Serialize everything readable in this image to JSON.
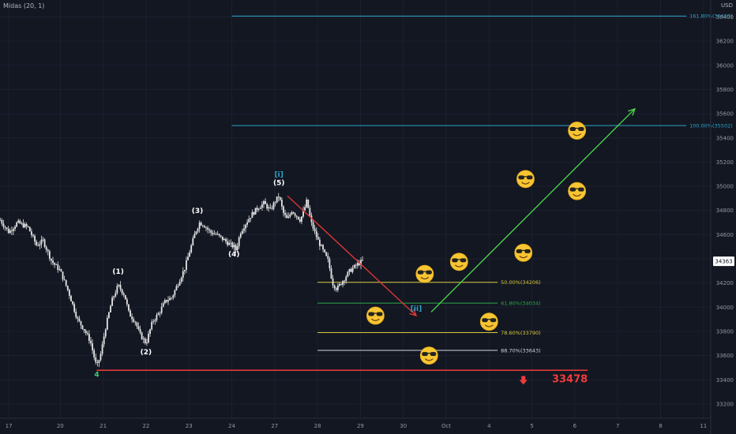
{
  "header": {
    "indicator": "Midas (20, 1)",
    "currency": "USD"
  },
  "colors": {
    "background": "#131722",
    "candle": "#e6e6e6",
    "fib_cyan": "#2ba3c9",
    "fib_yellow": "#d8c93a",
    "fib_green": "#2ea84a",
    "fib_white": "#d1d4dc",
    "support_red": "#ef3b3b",
    "arrow_red": "#e53935",
    "arrow_green": "#4cd94c",
    "wave_bracket": "#2ba3c9",
    "wave_four": "#3cd070",
    "price_tag_bg": "#ffffff"
  },
  "chart_data": {
    "type": "candlestick",
    "x_ticks": [
      "17",
      "20",
      "21",
      "22",
      "23",
      "24",
      "27",
      "28",
      "29",
      "30",
      "Oct",
      "4",
      "5",
      "6",
      "7",
      "8",
      "11"
    ],
    "x_tick_index": [
      -0.2,
      1,
      2,
      3,
      4,
      5,
      6,
      7,
      8,
      9,
      10,
      11,
      12,
      13,
      14,
      15,
      16
    ],
    "y_ticks": [
      33200,
      33400,
      33600,
      33800,
      34000,
      34200,
      34400,
      34600,
      34800,
      35000,
      35200,
      35400,
      35600,
      35800,
      36000,
      36200,
      36400
    ],
    "ylim": [
      33100,
      36490
    ],
    "last_price": "34363",
    "price_path": [
      [
        -0.4,
        34720
      ],
      [
        -0.2,
        34620
      ],
      [
        0,
        34700
      ],
      [
        0.25,
        34660
      ],
      [
        0.45,
        34510
      ],
      [
        0.6,
        34550
      ],
      [
        0.8,
        34380
      ],
      [
        1.0,
        34300
      ],
      [
        1.2,
        34120
      ],
      [
        1.4,
        33900
      ],
      [
        1.55,
        33820
      ],
      [
        1.7,
        33720
      ],
      [
        1.85,
        33500
      ],
      [
        1.95,
        33620
      ],
      [
        2.05,
        33820
      ],
      [
        2.2,
        34050
      ],
      [
        2.35,
        34180
      ],
      [
        2.5,
        34100
      ],
      [
        2.6,
        33950
      ],
      [
        2.75,
        33880
      ],
      [
        2.85,
        33780
      ],
      [
        3.0,
        33700
      ],
      [
        3.15,
        33880
      ],
      [
        3.3,
        33950
      ],
      [
        3.45,
        34050
      ],
      [
        3.6,
        34080
      ],
      [
        3.75,
        34200
      ],
      [
        3.9,
        34320
      ],
      [
        4.05,
        34500
      ],
      [
        4.15,
        34620
      ],
      [
        4.25,
        34700
      ],
      [
        4.35,
        34680
      ],
      [
        4.5,
        34620
      ],
      [
        4.65,
        34600
      ],
      [
        4.8,
        34560
      ],
      [
        4.95,
        34520
      ],
      [
        5.05,
        34500
      ],
      [
        5.1,
        34470
      ],
      [
        5.2,
        34620
      ],
      [
        5.3,
        34680
      ],
      [
        5.45,
        34760
      ],
      [
        5.6,
        34820
      ],
      [
        5.75,
        34860
      ],
      [
        5.9,
        34800
      ],
      [
        6.0,
        34870
      ],
      [
        6.1,
        34920
      ],
      [
        6.2,
        34780
      ],
      [
        6.3,
        34720
      ],
      [
        6.4,
        34800
      ],
      [
        6.5,
        34760
      ],
      [
        6.6,
        34720
      ],
      [
        6.7,
        34820
      ],
      [
        6.75,
        34880
      ],
      [
        6.85,
        34700
      ],
      [
        7.0,
        34560
      ],
      [
        7.15,
        34450
      ],
      [
        7.25,
        34380
      ],
      [
        7.35,
        34200
      ],
      [
        7.45,
        34150
      ],
      [
        7.55,
        34200
      ],
      [
        7.65,
        34250
      ],
      [
        7.75,
        34300
      ],
      [
        7.85,
        34330
      ],
      [
        7.95,
        34360
      ],
      [
        8.05,
        34380
      ]
    ],
    "wave_labels": [
      {
        "text": "4",
        "x": 1.85,
        "y": 33425,
        "color": "wave_four"
      },
      {
        "text": "(1)",
        "x": 2.35,
        "y": 34275,
        "color": "white"
      },
      {
        "text": "(2)",
        "x": 3.0,
        "y": 33610,
        "color": "white"
      },
      {
        "text": "(3)",
        "x": 4.2,
        "y": 34780,
        "color": "white"
      },
      {
        "text": "(4)",
        "x": 5.05,
        "y": 34420,
        "color": "white"
      },
      {
        "text": "(5)",
        "x": 6.1,
        "y": 35010,
        "color": "white"
      },
      {
        "text": "[i]",
        "x": 6.1,
        "y": 35080,
        "color": "wave_bracket"
      },
      {
        "text": "[ii]",
        "x": 9.3,
        "y": 33970,
        "color": "wave_bracket"
      }
    ],
    "fib_levels": [
      {
        "label": "161.80%(36407)",
        "value": 36407,
        "x_start": 5.0,
        "x_end": 15.6,
        "color": "fib_cyan"
      },
      {
        "label": "100.00%(35502)",
        "value": 35502,
        "x_start": 5.0,
        "x_end": 15.6,
        "color": "fib_cyan"
      },
      {
        "label": "50.00%(34206)",
        "value": 34206,
        "x_start": 7.0,
        "x_end": 11.2,
        "color": "fib_yellow"
      },
      {
        "label": "61.80%(34034)",
        "value": 34034,
        "x_start": 7.0,
        "x_end": 11.2,
        "color": "fib_green"
      },
      {
        "label": "78.60%(33790)",
        "value": 33790,
        "x_start": 7.0,
        "x_end": 11.2,
        "color": "fib_yellow"
      },
      {
        "label": "88.70%(33643)",
        "value": 33643,
        "x_start": 7.0,
        "x_end": 11.2,
        "color": "fib_white"
      }
    ],
    "support": {
      "label": "33478",
      "value": 33478,
      "x_start": 1.85,
      "x_end": 13.3
    },
    "arrows": [
      {
        "from": [
          6.3,
          34920
        ],
        "to": [
          9.3,
          33930
        ],
        "color": "arrow_red"
      },
      {
        "from": [
          9.65,
          33960
        ],
        "to": [
          14.4,
          35640
        ],
        "color": "arrow_green"
      }
    ],
    "down_marker": {
      "x": 11.8,
      "y": 33385
    },
    "emojis": [
      {
        "glyph": "😎",
        "x": 9.5,
        "y": 34275
      },
      {
        "glyph": "😎",
        "x": 10.3,
        "y": 34375
      },
      {
        "glyph": "😎",
        "x": 11.8,
        "y": 34450
      },
      {
        "glyph": "😎",
        "x": 11.85,
        "y": 35060
      },
      {
        "glyph": "😎",
        "x": 13.05,
        "y": 35460
      },
      {
        "glyph": "😎",
        "x": 13.05,
        "y": 34960
      },
      {
        "glyph": "😎",
        "x": 8.35,
        "y": 33930
      },
      {
        "glyph": "😎",
        "x": 11.0,
        "y": 33880
      },
      {
        "glyph": "😎",
        "x": 9.6,
        "y": 33600
      }
    ]
  }
}
